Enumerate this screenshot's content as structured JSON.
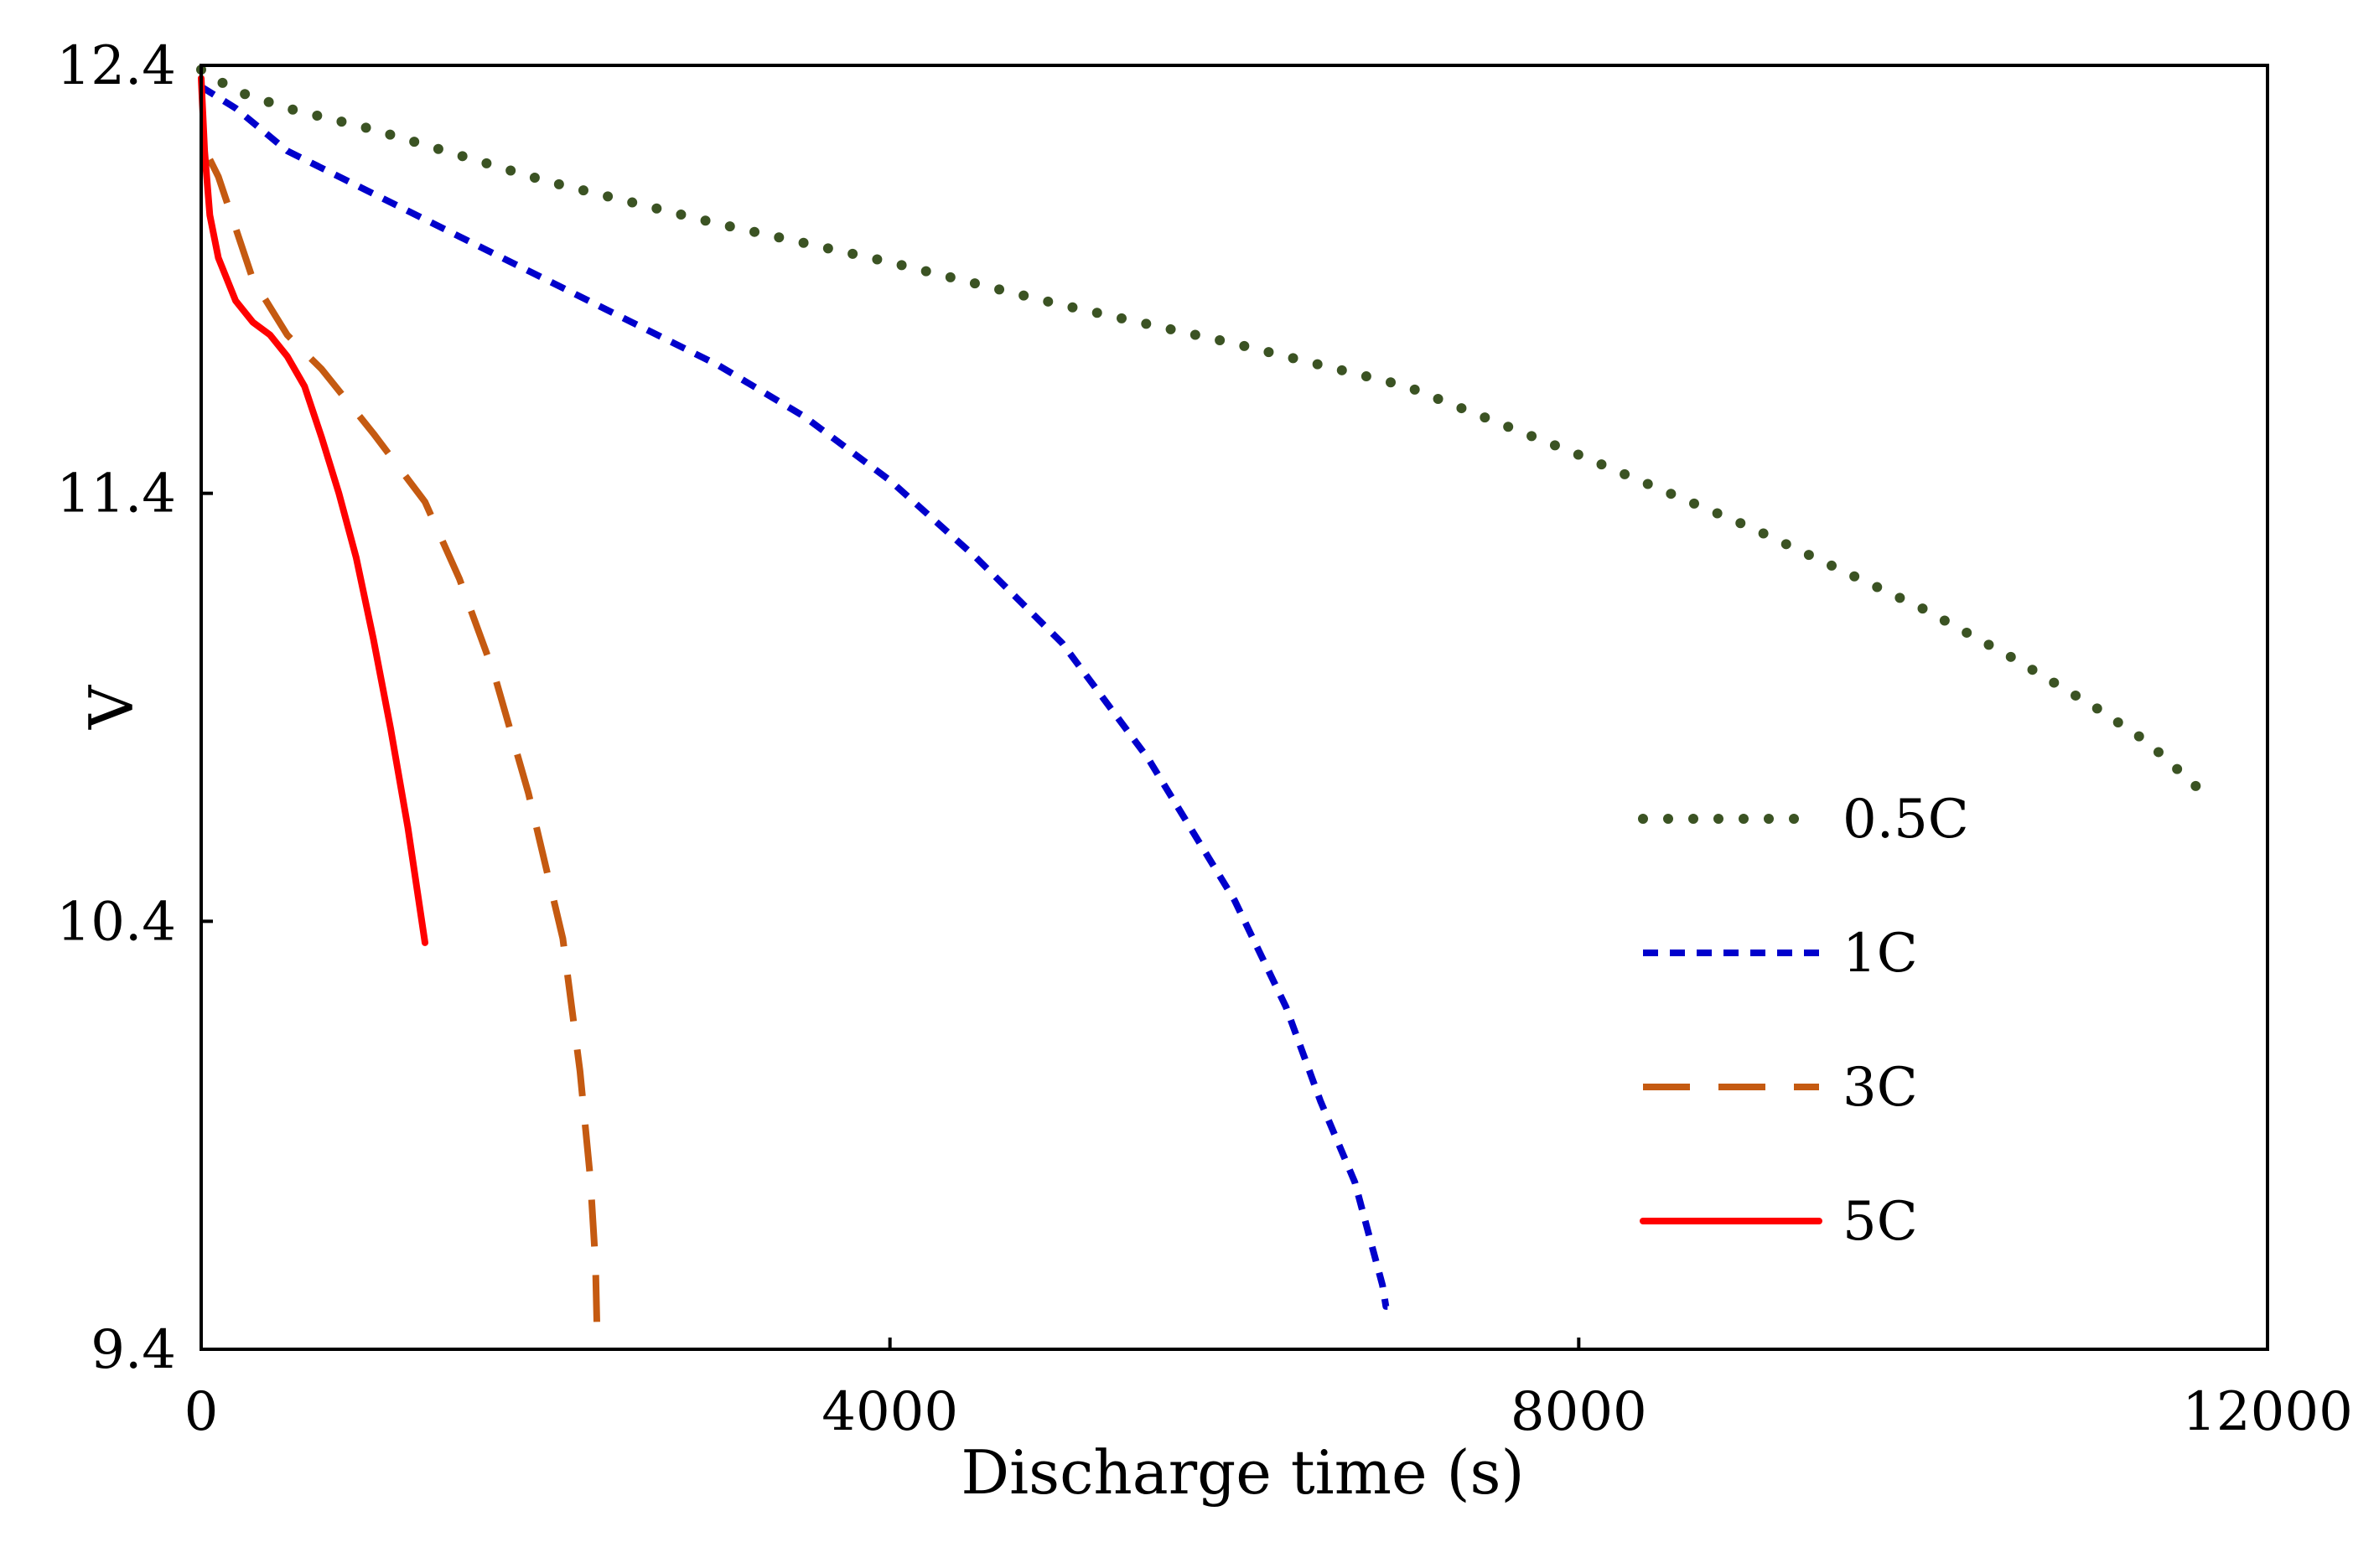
{
  "chart_data": {
    "type": "line",
    "title": "",
    "xlabel": "Discharge time (s)",
    "ylabel": "V",
    "xlim": [
      0,
      12000
    ],
    "ylim": [
      9.4,
      12.4
    ],
    "xticks": [
      0,
      4000,
      8000,
      12000
    ],
    "xtick_labels": [
      "0",
      "4000",
      "8000",
      "12000"
    ],
    "yticks": [
      9.4,
      10.4,
      11.4,
      12.4
    ],
    "ytick_labels": [
      "9.4",
      "10.4",
      "11.4",
      "12.4"
    ],
    "grid": false,
    "legend_position": "right",
    "series": [
      {
        "name": "0.5C",
        "style": "dotted",
        "color": "#3b5323",
        "x": [
          0,
          200,
          500,
          1000,
          2000,
          3000,
          4000,
          5000,
          6000,
          7000,
          8000,
          9000,
          10000,
          10500,
          11000,
          11300,
          11600
        ],
        "y": [
          12.39,
          12.34,
          12.3,
          12.25,
          12.13,
          12.03,
          11.94,
          11.84,
          11.75,
          11.65,
          11.49,
          11.32,
          11.13,
          11.02,
          10.9,
          10.82,
          10.71
        ]
      },
      {
        "name": "1C",
        "style": "dashed",
        "color": "#0000cc",
        "x": [
          0,
          200,
          500,
          1000,
          1500,
          2000,
          2500,
          3000,
          3500,
          4000,
          4500,
          5000,
          5500,
          6000,
          6300,
          6500,
          6700,
          6800,
          6860,
          6880,
          6890
        ],
        "y": [
          12.35,
          12.3,
          12.2,
          12.1,
          12.0,
          11.9,
          11.8,
          11.7,
          11.58,
          11.43,
          11.25,
          11.05,
          10.78,
          10.45,
          10.2,
          9.98,
          9.79,
          9.64,
          9.55,
          9.5,
          9.5
        ]
      },
      {
        "name": "3C",
        "style": "long-dash",
        "color": "#c55a11",
        "x": [
          50,
          100,
          200,
          300,
          500,
          700,
          1000,
          1300,
          1500,
          1700,
          1900,
          2100,
          2200,
          2260,
          2290,
          2300
        ],
        "y": [
          12.18,
          12.14,
          12.02,
          11.9,
          11.77,
          11.69,
          11.54,
          11.38,
          11.2,
          10.98,
          10.7,
          10.36,
          10.05,
          9.8,
          9.6,
          9.42
        ]
      },
      {
        "name": "5C",
        "style": "solid",
        "color": "#ff0000",
        "x": [
          0,
          20,
          50,
          100,
          200,
          300,
          400,
          500,
          600,
          700,
          800,
          900,
          1000,
          1100,
          1200,
          1300
        ],
        "y": [
          12.37,
          12.2,
          12.05,
          11.95,
          11.85,
          11.8,
          11.77,
          11.72,
          11.65,
          11.53,
          11.4,
          11.25,
          11.06,
          10.85,
          10.62,
          10.35
        ]
      }
    ]
  }
}
